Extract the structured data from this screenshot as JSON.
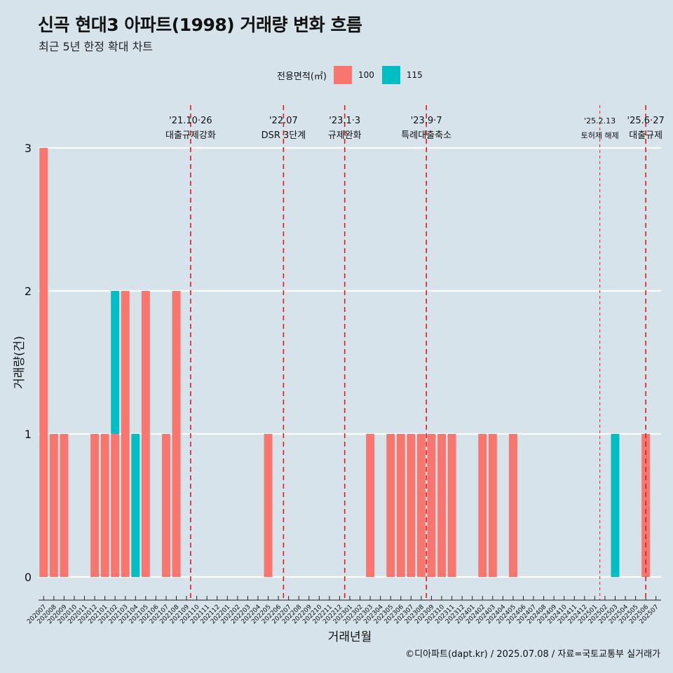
{
  "title": "신곡 현대3 아파트(1998) 거래량 변화 흐름",
  "subtitle": "최근 5년 한정 확대 차트",
  "legend": {
    "title": "전용면적(㎡)",
    "items": [
      {
        "label": "100",
        "color": "#f8766d"
      },
      {
        "label": "115",
        "color": "#00bfc4"
      }
    ]
  },
  "caption": "©디아파트(dapt.kr) / 2025.07.08 / 자료=국토교통부 실거래가",
  "chart_data": {
    "type": "bar",
    "xlabel": "거래년월",
    "ylabel": "거래량(건)",
    "ylim": [
      0,
      3
    ],
    "yticks": [
      0,
      1,
      2,
      3
    ],
    "categories": [
      "202007",
      "202008",
      "202009",
      "202010",
      "202011",
      "202012",
      "202101",
      "202102",
      "202103",
      "202104",
      "202105",
      "202106",
      "202107",
      "202108",
      "202109",
      "202110",
      "202111",
      "202112",
      "202201",
      "202202",
      "202203",
      "202204",
      "202205",
      "202206",
      "202207",
      "202208",
      "202209",
      "202210",
      "202211",
      "202212",
      "202301",
      "202302",
      "202303",
      "202304",
      "202305",
      "202306",
      "202307",
      "202308",
      "202309",
      "202310",
      "202311",
      "202312",
      "202401",
      "202402",
      "202403",
      "202404",
      "202405",
      "202406",
      "202407",
      "202408",
      "202409",
      "202410",
      "202411",
      "202412",
      "202501",
      "202502",
      "202503",
      "202504",
      "202505",
      "202506",
      "202507"
    ],
    "series": [
      {
        "name": "100",
        "color": "#f8766d",
        "values": [
          3,
          1,
          1,
          0,
          0,
          1,
          1,
          1,
          2,
          0,
          2,
          0,
          1,
          2,
          0,
          0,
          0,
          0,
          0,
          0,
          0,
          0,
          1,
          0,
          0,
          0,
          0,
          0,
          0,
          0,
          0,
          0,
          1,
          0,
          1,
          1,
          1,
          1,
          1,
          1,
          1,
          0,
          0,
          1,
          1,
          0,
          1,
          0,
          0,
          0,
          0,
          0,
          0,
          0,
          0,
          0,
          0,
          0,
          0,
          1,
          0
        ]
      },
      {
        "name": "115",
        "color": "#00bfc4",
        "values": [
          0,
          0,
          0,
          0,
          0,
          0,
          0,
          1,
          0,
          1,
          0,
          0,
          0,
          0,
          0,
          0,
          0,
          0,
          0,
          0,
          0,
          0,
          0,
          0,
          0,
          0,
          0,
          0,
          0,
          0,
          0,
          0,
          0,
          0,
          0,
          0,
          0,
          0,
          0,
          0,
          0,
          0,
          0,
          0,
          0,
          0,
          0,
          0,
          0,
          0,
          0,
          0,
          0,
          0,
          0,
          0,
          1,
          0,
          0,
          0,
          0
        ]
      }
    ],
    "events": [
      {
        "date": "202110",
        "line1": "'21.10·26",
        "line2": "대출규제강화",
        "style": "dashed"
      },
      {
        "date": "202207",
        "line1": "'22.07",
        "line2": "DSR 3단계",
        "style": "dashed"
      },
      {
        "date": "202301",
        "line1": "'23.1·3",
        "line2": "규제완화",
        "style": "dashed"
      },
      {
        "date": "202309",
        "line1": "'23.9·7",
        "line2": "특례대출축소",
        "style": "dashed"
      },
      {
        "date": "202502",
        "line1": "'25.2.13",
        "line2": "토허제 해제",
        "style": "thin"
      },
      {
        "date": "202506",
        "line1": "'25.6·27",
        "line2": "대출규제",
        "style": "dashed"
      }
    ]
  }
}
